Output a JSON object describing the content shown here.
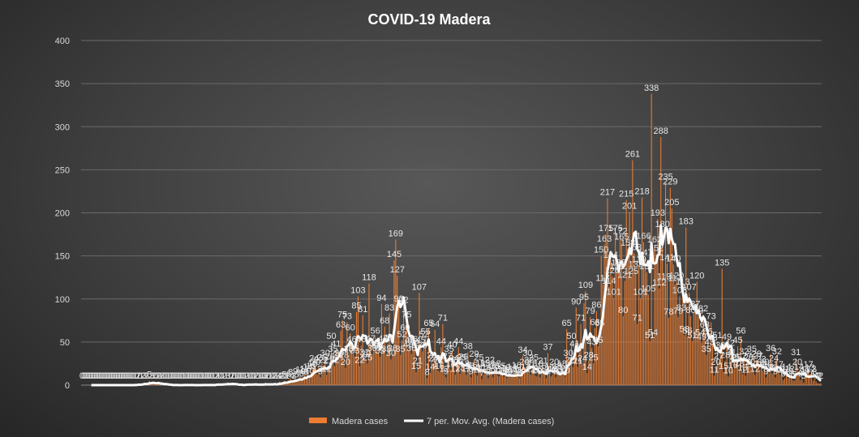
{
  "chart_data": {
    "type": "bar",
    "title": "COVID-19  Madera",
    "xlabel": "",
    "ylabel": "",
    "ylim": [
      0,
      400
    ],
    "yticks": [
      "0",
      "50",
      "100",
      "150",
      "200",
      "250",
      "300",
      "350",
      "400"
    ],
    "grid": true,
    "legend_position": "bottom",
    "colors": {
      "bar": "#ed7d31",
      "line": "#ffffff",
      "grid": "#6a6a6a",
      "text": "#d9d9d9"
    },
    "series": [
      {
        "name": "Madera cases",
        "kind": "bar",
        "values": [
          0,
          0,
          0,
          0,
          0,
          0,
          0,
          0,
          0,
          0,
          0,
          0,
          0,
          0,
          0,
          0,
          0,
          0,
          0,
          0,
          0,
          0,
          0,
          0,
          0,
          0,
          0,
          0,
          0,
          0,
          0,
          0,
          0,
          0,
          1,
          0,
          2,
          0,
          1,
          2,
          3,
          2,
          1,
          5,
          2,
          3,
          2,
          0,
          3,
          2,
          1,
          2,
          0,
          0,
          0,
          1,
          0,
          0,
          0,
          0,
          0,
          0,
          0,
          0,
          0,
          1,
          0,
          0,
          0,
          0,
          0,
          0,
          0,
          0,
          0,
          0,
          0,
          1,
          0,
          0,
          0,
          0,
          0,
          0,
          1,
          0,
          2,
          1,
          0,
          0,
          1,
          2,
          1,
          3,
          1,
          0,
          2,
          0,
          1,
          0,
          0,
          0,
          0,
          0,
          1,
          2,
          1,
          0,
          0,
          0,
          1,
          2,
          0,
          1,
          0,
          0,
          0,
          3,
          2,
          0,
          1,
          0,
          0,
          2,
          1,
          3,
          4,
          2,
          2,
          5,
          3,
          2,
          6,
          8,
          4,
          3,
          9,
          5,
          7,
          11,
          6,
          9,
          12,
          8,
          14,
          10,
          15,
          18,
          24,
          20,
          12,
          22,
          9,
          25,
          22,
          30,
          12,
          21,
          26,
          50,
          35,
          22,
          41,
          28,
          30,
          63,
          75,
          28,
          20,
          73,
          35,
          60,
          46,
          36,
          33,
          85,
          103,
          22,
          46,
          81,
          31,
          29,
          25,
          118,
          47,
          36,
          40,
          56,
          40,
          38,
          33,
          94,
          47,
          68,
          35,
          48,
          83,
          30,
          36,
          145,
          169,
          127,
          93,
          35,
          52,
          92,
          60,
          75,
          40,
          45,
          36,
          46,
          42,
          15,
          21,
          107,
          45,
          39,
          52,
          55,
          8,
          65,
          14,
          28,
          24,
          64,
          24,
          17,
          15,
          44,
          71,
          12,
          9,
          27,
          35,
          18,
          40,
          24,
          12,
          22,
          44,
          13,
          25,
          26,
          18,
          12,
          38,
          15,
          9,
          16,
          29,
          13,
          11,
          25,
          18,
          7,
          12,
          19,
          14,
          8,
          22,
          16,
          9,
          15,
          18,
          11,
          10,
          15,
          12,
          10,
          13,
          8,
          11,
          9,
          14,
          12,
          9,
          16,
          11,
          8,
          10,
          34,
          20,
          14,
          30,
          22,
          12,
          18,
          25,
          11,
          10,
          18,
          9,
          15,
          21,
          12,
          8,
          37,
          14,
          10,
          12,
          20,
          9,
          15,
          11,
          12,
          18,
          14,
          10,
          65,
          30,
          22,
          50,
          21,
          41,
          90,
          21,
          38,
          71,
          24,
          95,
          109,
          14,
          28,
          79,
          43,
          25,
          66,
          86,
          45,
          65,
          150,
          117,
          163,
          175,
          217,
          114,
          144,
          126,
          101,
          175,
          131,
          135,
          172,
          165,
          80,
          121,
          215,
          158,
          201,
          125,
          261,
          153,
          133,
          71,
          139,
          101,
          218,
          166,
          147,
          131,
          105,
          51,
          338,
          54,
          162,
          152,
          193,
          112,
          288,
          180,
          119,
          235,
          141,
          78,
          229,
          205,
          140,
          117,
          120,
          79,
          103,
          83,
          113,
          58,
          183,
          56,
          107,
          80,
          51,
          84,
          87,
          120,
          79,
          54,
          49,
          82,
          63,
          35,
          55,
          43,
          73,
          48,
          11,
          20,
          51,
          27,
          39,
          135,
          15,
          28,
          49,
          10,
          42,
          31,
          16,
          26,
          25,
          45,
          18,
          56,
          13,
          32,
          11,
          27,
          25,
          20,
          35,
          17,
          12,
          29,
          27,
          18,
          23,
          17,
          20,
          9,
          16,
          14,
          36,
          13,
          24,
          9,
          32,
          17,
          12,
          11,
          6,
          8,
          14,
          8,
          12,
          9,
          6,
          5,
          31,
          20,
          14,
          6,
          9,
          3,
          11,
          9,
          17,
          13,
          12,
          5,
          8,
          4,
          2,
          2,
          2
        ]
      },
      {
        "name": "7 per. Mov. Avg. (Madera cases)",
        "kind": "line",
        "values": []
      }
    ],
    "data_labels": [
      "0",
      "0",
      "0",
      "0",
      "0",
      "0",
      "0",
      "0",
      "0",
      "0",
      "0",
      "0",
      "0",
      "0",
      "0",
      "0",
      "0",
      "0",
      "0",
      "0",
      "0",
      "0",
      "0",
      "0",
      "0",
      "0",
      "0",
      "0",
      "0",
      "0",
      "0",
      "0",
      "0",
      "0",
      "1",
      "0",
      "2",
      "0",
      "1",
      "2",
      "3",
      "2",
      "1",
      "5",
      "2",
      "3",
      "2",
      "0",
      "3",
      "2",
      "1",
      "2",
      "0",
      "0",
      "0",
      "1",
      "0",
      "0",
      "0",
      "0",
      "0",
      "0",
      "0",
      "0",
      "0",
      "1",
      "0",
      "0",
      "0",
      "0",
      "0",
      "0",
      "0",
      "0",
      "0",
      "0",
      "0",
      "1",
      "0",
      "0",
      "0",
      "0",
      "0",
      "0",
      "1",
      "0",
      "2",
      "1",
      "0",
      "0",
      "1",
      "2",
      "1",
      "3",
      "1",
      "0",
      "2",
      "0",
      "1",
      "0",
      "0",
      "0",
      "0",
      "0",
      "1",
      "2",
      "1",
      "0",
      "0",
      "0",
      "1",
      "2",
      "0",
      "1",
      "0",
      "0",
      "0",
      "3",
      "2",
      "0",
      "1",
      "0",
      "0",
      "2",
      "1",
      "3",
      "4",
      "2",
      "2",
      "5",
      "3",
      "2",
      "6",
      "8",
      "4",
      "3",
      "9",
      "5",
      "7",
      "11",
      "6",
      "9",
      "12",
      "8",
      "14",
      "10",
      "15",
      "18",
      "24",
      "20",
      "12",
      "22",
      "9",
      "25",
      "22",
      "30",
      "12",
      "21",
      "26",
      "50",
      "35",
      "22",
      "41",
      "28",
      "30",
      "63",
      "75",
      "28",
      "20",
      "73",
      "35",
      "60",
      "46",
      "36",
      "33",
      "85",
      "103",
      "22",
      "46",
      "81",
      "31",
      "29",
      "25",
      "118",
      "47",
      "36",
      "40",
      "56",
      "40",
      "38",
      "33",
      "94",
      "47",
      "68",
      "35",
      "48",
      "83",
      "30",
      "36",
      "145",
      "169",
      "127",
      "93",
      "35",
      "52",
      "92",
      "60",
      "75",
      "40",
      "45",
      "36",
      "46",
      "42",
      "15",
      "21",
      "107",
      "45",
      "39",
      "52",
      "55",
      "8",
      "65",
      "14",
      "28",
      "24",
      "64",
      "24",
      "17",
      "15",
      "44",
      "71",
      "12",
      "9",
      "27",
      "35",
      "18",
      "40",
      "24",
      "12",
      "22",
      "44",
      "13",
      "25",
      "26",
      "18",
      "12",
      "38",
      "15",
      "9",
      "16",
      "29",
      "13",
      "11",
      "25",
      "18",
      "7",
      "12",
      "19",
      "14",
      "8",
      "22",
      "16",
      "9",
      "15",
      "18",
      "11",
      "10",
      "15",
      "12",
      "10",
      "13",
      "8",
      "11",
      "9",
      "14",
      "12",
      "9",
      "16",
      "11",
      "8",
      "10",
      "34",
      "20",
      "14",
      "30",
      "22",
      "12",
      "18",
      "25",
      "11",
      "10",
      "18",
      "9",
      "15",
      "21",
      "12",
      "8",
      "37",
      "14",
      "10",
      "12",
      "20",
      "9",
      "15",
      "11",
      "12",
      "18",
      "14",
      "10",
      "65",
      "30",
      "22",
      "50",
      "21",
      "41",
      "90",
      "21",
      "38",
      "71",
      "24",
      "95",
      "109",
      "14",
      "28",
      "79",
      "43",
      "25",
      "66",
      "86",
      "45",
      "65",
      "150",
      "117",
      "163",
      "175",
      "217",
      "114",
      "144",
      "126",
      "101",
      "175",
      "131",
      "135",
      "172",
      "165",
      "80",
      "121",
      "215",
      "158",
      "201",
      "125",
      "261",
      "153",
      "133",
      "71",
      "139",
      "101",
      "218",
      "166",
      "147",
      "131",
      "105",
      "51",
      "338",
      "54",
      "162",
      "152",
      "193",
      "112",
      "288",
      "180",
      "119",
      "235",
      "141",
      "78",
      "229",
      "205",
      "140",
      "117",
      "120",
      "79",
      "103",
      "83",
      "113",
      "58",
      "183",
      "56",
      "107",
      "80",
      "51",
      "84",
      "87",
      "120",
      "79",
      "54",
      "49",
      "82",
      "63",
      "35",
      "55",
      "43",
      "73",
      "48",
      "11",
      "20",
      "51",
      "27",
      "39",
      "135",
      "15",
      "28",
      "49",
      "10",
      "42",
      "31",
      "16",
      "26",
      "25",
      "45",
      "18",
      "56",
      "13",
      "32",
      "11",
      "27",
      "25",
      "20",
      "35",
      "17",
      "12",
      "29",
      "27",
      "18",
      "23",
      "17",
      "20",
      "9",
      "16",
      "14",
      "36",
      "13",
      "24",
      "9",
      "32",
      "17",
      "12",
      "11",
      "6",
      "8",
      "14",
      "8",
      "12",
      "9",
      "6",
      "5",
      "31",
      "20",
      "14",
      "6",
      "9",
      "3",
      "11",
      "9",
      "17",
      "13",
      "12",
      "5",
      "8",
      "4",
      "2",
      "2",
      "2"
    ]
  }
}
